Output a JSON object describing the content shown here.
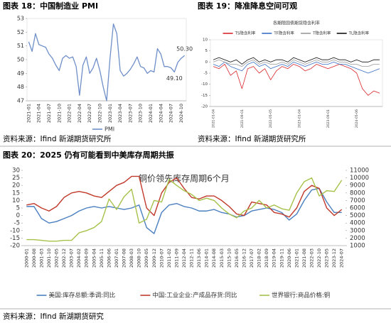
{
  "chart_data": [
    {
      "type": "line",
      "caption": "图表 18：中国制造业 PMI",
      "source": "资料来源：Ifind 新湖期货研究所",
      "categories": [
        "2021-01",
        null,
        null,
        "2021-04",
        null,
        null,
        "2021-07",
        null,
        null,
        "2021-10",
        null,
        null,
        "2022-01",
        null,
        null,
        "2022-04",
        null,
        null,
        "2022-07",
        null,
        null,
        "2022-10",
        null,
        null,
        "2023-01",
        null,
        null,
        "2023-04",
        null,
        null,
        "2023-07",
        null,
        null,
        "2023-10",
        null,
        null,
        "2024-01",
        null,
        null,
        "2024-04",
        null,
        null,
        "2024-07",
        null,
        null,
        "2024-10",
        null
      ],
      "series": [
        {
          "name": "PMI",
          "color": "#6f8fc9",
          "values": [
            51.3,
            50.6,
            51.9,
            51.1,
            51.0,
            50.9,
            50.4,
            50.1,
            49.6,
            49.2,
            50.1,
            50.3,
            50.1,
            50.2,
            49.5,
            47.4,
            49.6,
            50.2,
            49.0,
            49.4,
            50.1,
            49.2,
            48.0,
            47.0,
            50.1,
            52.6,
            51.9,
            49.2,
            48.8,
            49.0,
            49.3,
            49.7,
            50.2,
            49.5,
            49.4,
            49.0,
            49.2,
            49.1,
            50.8,
            50.4,
            49.5,
            49.5,
            49.4,
            49.1,
            49.8,
            50.1,
            50.3
          ],
          "value_labels": [
            null,
            null,
            null,
            null,
            null,
            null,
            null,
            null,
            null,
            null,
            null,
            null,
            null,
            null,
            null,
            null,
            null,
            null,
            null,
            null,
            null,
            null,
            null,
            null,
            null,
            null,
            null,
            null,
            null,
            null,
            null,
            null,
            null,
            null,
            null,
            null,
            null,
            null,
            null,
            null,
            null,
            null,
            null,
            "49.10",
            null,
            null,
            "50.30"
          ]
        }
      ],
      "ylim": [
        47,
        53
      ],
      "yticks": [
        47,
        48,
        49,
        50,
        51,
        52,
        53
      ],
      "legend": "bottom"
    },
    {
      "type": "line",
      "caption": "图表 19：降准降息空间可观",
      "source": "资料来源：Ifind 新湖期货研究所",
      "title": "各期限国债期货隐含利率",
      "categories": [
        "2021-01-04",
        null,
        null,
        null,
        null,
        "2021-09-01",
        null,
        null,
        null,
        null,
        "2022-05-05",
        null,
        null,
        null,
        null,
        "2023-01-04",
        null,
        null,
        null,
        null,
        "2023-09-01",
        null,
        null,
        null,
        null,
        "2024-05-06",
        null,
        null,
        null,
        null
      ],
      "series": [
        {
          "name": "TS隐含利率",
          "color": "#d9262b",
          "values": [
            -2,
            -3,
            -1,
            -6,
            -4,
            -12,
            -3,
            -2,
            -5,
            -3,
            -8,
            -4,
            -2,
            -3,
            -1,
            -2,
            -4,
            -3,
            -1,
            -2,
            -3,
            -2,
            -1,
            -2,
            -3,
            -5,
            -12,
            -15,
            -13,
            -14
          ]
        },
        {
          "name": "TF隐含利率",
          "color": "#3a6fc4",
          "values": [
            -1,
            -2,
            0,
            -2,
            -3,
            -4,
            -1,
            0,
            -2,
            -1,
            -3,
            -2,
            -1,
            -2,
            0,
            -1,
            -2,
            -1,
            0,
            -1,
            -1,
            0,
            -1,
            -1,
            -2,
            -3,
            -4,
            -5,
            -4,
            -3
          ]
        },
        {
          "name": "T隐含利率",
          "color": "#9a9a9a",
          "values": [
            0,
            1,
            0,
            -1,
            -1,
            -2,
            0,
            1,
            -1,
            0,
            -1,
            -1,
            0,
            -1,
            1,
            0,
            -1,
            0,
            1,
            0,
            0,
            1,
            0,
            0,
            -1,
            -1,
            -2,
            -2,
            -1,
            -1
          ]
        },
        {
          "name": "TL隐含利率",
          "color": "#111111",
          "values": [
            1,
            2,
            1,
            0,
            1,
            -1,
            1,
            2,
            0,
            1,
            0,
            1,
            1,
            0,
            2,
            1,
            0,
            1,
            2,
            1,
            1,
            2,
            1,
            1,
            0,
            1,
            0,
            0,
            1,
            1
          ]
        }
      ],
      "ylim": [
        -20,
        10
      ],
      "yticks": [
        -20,
        -15,
        -10,
        -5,
        0,
        5,
        10
      ],
      "legend": "top"
    },
    {
      "type": "line",
      "caption": "图表 20：2025 仍有可能看到中美库存周期共振",
      "source": "资料来源：Ifind 新湖期货研究",
      "title": "铜价领先库存周期6个月",
      "categories": [
        "2000-01",
        "2000-08",
        "2001-03",
        "2001-10",
        "2002-05",
        "2002-12",
        "2003-07",
        "2004-02",
        "2004-09",
        "2005-04",
        "2005-11",
        "2006-06",
        "2007-01",
        "2007-08",
        "2008-03",
        "2008-10",
        "2009-05",
        "2009-12",
        "2010-07",
        "2011-02",
        "2011-09",
        "2012-04",
        "2012-11",
        "2013-06",
        "2014-01",
        "2014-08",
        "2015-03",
        "2015-10",
        "2016-05",
        "2016-12",
        "2017-07",
        "2018-02",
        "2018-09",
        "2019-04",
        "2019-11",
        "2020-06",
        "2021-01",
        "2021-08",
        "2022-03",
        "2022-10",
        "2023-05",
        "2023-12",
        "2024-07"
      ],
      "series": [
        {
          "name": "美国:库存总额:季调:同比",
          "color": "#4a7fc0",
          "values": [
            6,
            6,
            -2,
            -5,
            -4,
            -2,
            0,
            3,
            5,
            6,
            5,
            6,
            5,
            4,
            5,
            7,
            -8,
            -12,
            2,
            7,
            8,
            6,
            5,
            3,
            3,
            4,
            2,
            1,
            -1,
            0,
            3,
            4,
            5,
            4,
            2,
            -3,
            1,
            10,
            17,
            18,
            9,
            2,
            2
          ]
        },
        {
          "name": "中国:工业企业:产成品存货:同比",
          "color": "#c0392b",
          "values": [
            7,
            8,
            5,
            3,
            6,
            12,
            15,
            16,
            15,
            13,
            12,
            16,
            20,
            22,
            26,
            26,
            5,
            0,
            15,
            22,
            25,
            18,
            12,
            11,
            13,
            13,
            10,
            6,
            1,
            0,
            9,
            8,
            7,
            2,
            1,
            -1,
            5,
            16,
            20,
            18,
            5,
            0,
            4
          ]
        },
        {
          "name": "世界银行:商品价格:铜",
          "color": "#a6c24a",
          "axis": "y2",
          "values": [
            1800,
            1800,
            1700,
            1600,
            1600,
            1700,
            1700,
            2700,
            3000,
            3400,
            4200,
            7200,
            5800,
            7500,
            8500,
            4000,
            4500,
            7000,
            6800,
            9800,
            9000,
            8300,
            7800,
            7000,
            7300,
            7000,
            6000,
            5200,
            4700,
            5600,
            6000,
            7000,
            6000,
            6400,
            5900,
            5700,
            8000,
            9500,
            10000,
            7600,
            8300,
            8200,
            9700
          ]
        }
      ],
      "ylim": [
        -20,
        30
      ],
      "yticks": [
        -20,
        -15,
        -10,
        -5,
        0,
        5,
        10,
        15,
        20,
        25,
        30
      ],
      "y2lim": [
        1000,
        11000
      ],
      "y2ticks": [
        1000,
        2000,
        3000,
        4000,
        5000,
        6000,
        7000,
        8000,
        9000,
        10000,
        11000
      ],
      "legend": "bottom"
    }
  ]
}
